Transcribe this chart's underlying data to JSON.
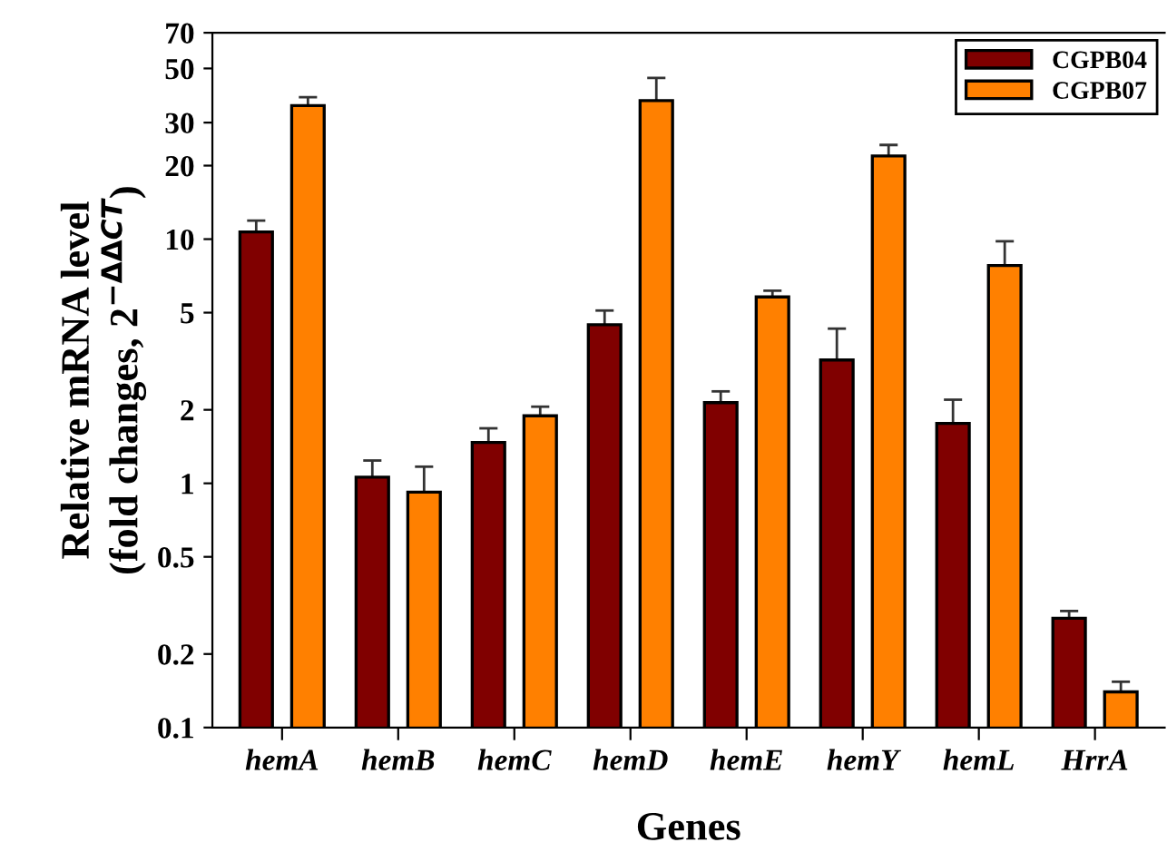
{
  "chart_data": {
    "type": "bar",
    "xlabel": "Genes",
    "ylabel": "Relative mRNA level\n(fold changes, 2$^{−ΔΔCT}$)",
    "categories": [
      "hemA",
      "hemB",
      "hemC",
      "hemD",
      "hemE",
      "hemY",
      "hemL",
      "HrrA"
    ],
    "series": [
      {
        "name": "CGPB04",
        "color": "#800000",
        "values": [
          10.7,
          1.06,
          1.47,
          4.46,
          2.14,
          3.2,
          1.76,
          0.28
        ],
        "errors": [
          [
            10.7,
            11.9
          ],
          [
            1.06,
            1.24
          ],
          [
            1.47,
            1.68
          ],
          [
            4.46,
            5.1
          ],
          [
            2.14,
            2.38
          ],
          [
            3.2,
            4.3
          ],
          [
            1.76,
            2.2
          ],
          [
            0.28,
            0.3
          ]
        ]
      },
      {
        "name": "CGPB07",
        "color": "#ff8000",
        "values": [
          35.2,
          0.92,
          1.89,
          36.9,
          5.8,
          21.9,
          7.8,
          0.14
        ],
        "errors": [
          [
            35.2,
            38.1
          ],
          [
            0.92,
            1.17
          ],
          [
            1.89,
            2.06
          ],
          [
            36.9,
            45.7
          ],
          [
            5.8,
            6.15
          ],
          [
            21.9,
            24.3
          ],
          [
            7.8,
            9.8
          ],
          [
            0.14,
            0.154
          ]
        ]
      }
    ],
    "log": "y",
    "ylim": [
      0.1,
      70
    ],
    "yticks": [
      0.1,
      0.2,
      0.5,
      1,
      2,
      5,
      10,
      20,
      30,
      50,
      70
    ],
    "grid": false,
    "legend": "top right"
  }
}
